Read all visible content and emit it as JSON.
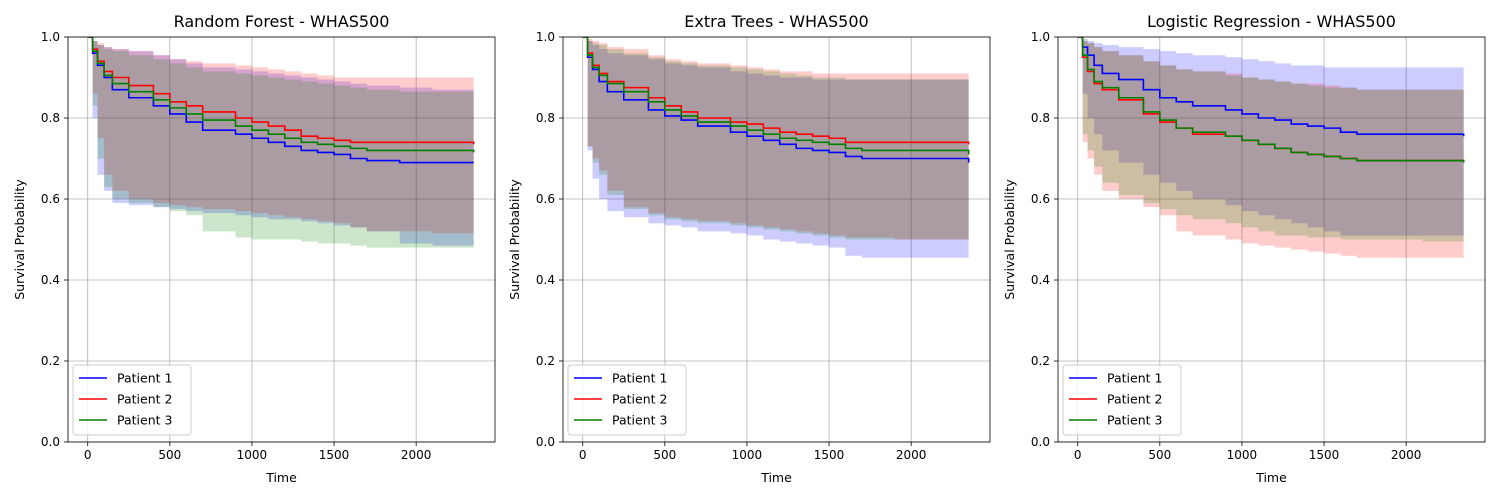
{
  "chart_data": [
    {
      "type": "line",
      "title": "Random Forest - WHAS500",
      "xlabel": "Time",
      "ylabel": "Survival Probability",
      "xlim": [
        -120,
        2480
      ],
      "ylim": [
        0.0,
        1.0
      ],
      "xticks": [
        0,
        500,
        1000,
        1500,
        2000
      ],
      "yticks": [
        0.0,
        0.2,
        0.4,
        0.6,
        0.8,
        1.0
      ],
      "grid": true,
      "legend": "lower-left",
      "x": [
        0,
        30,
        60,
        100,
        150,
        250,
        400,
        500,
        600,
        700,
        900,
        1000,
        1100,
        1200,
        1300,
        1400,
        1500,
        1600,
        1700,
        1900,
        2100,
        2350
      ],
      "series": [
        {
          "name": "Patient 1",
          "color": "#0000ff",
          "band_color": "#0000ff",
          "values": [
            1.0,
            0.96,
            0.93,
            0.9,
            0.87,
            0.85,
            0.83,
            0.81,
            0.79,
            0.77,
            0.76,
            0.75,
            0.74,
            0.73,
            0.72,
            0.715,
            0.71,
            0.7,
            0.695,
            0.69,
            0.69,
            0.69
          ],
          "lower": [
            1.0,
            0.8,
            0.66,
            0.62,
            0.59,
            0.585,
            0.58,
            0.575,
            0.57,
            0.565,
            0.56,
            0.555,
            0.55,
            0.55,
            0.545,
            0.54,
            0.535,
            0.53,
            0.52,
            0.49,
            0.485,
            0.48
          ],
          "upper": [
            1.0,
            0.99,
            0.98,
            0.975,
            0.97,
            0.965,
            0.955,
            0.945,
            0.935,
            0.925,
            0.92,
            0.915,
            0.91,
            0.905,
            0.9,
            0.895,
            0.89,
            0.885,
            0.88,
            0.875,
            0.87,
            0.865
          ]
        },
        {
          "name": "Patient 2",
          "color": "#ff0000",
          "band_color": "#ff0000",
          "values": [
            1.0,
            0.97,
            0.94,
            0.915,
            0.9,
            0.88,
            0.86,
            0.84,
            0.83,
            0.815,
            0.8,
            0.79,
            0.78,
            0.77,
            0.755,
            0.75,
            0.745,
            0.74,
            0.74,
            0.74,
            0.74,
            0.735
          ],
          "lower": [
            1.0,
            0.86,
            0.75,
            0.66,
            0.62,
            0.6,
            0.59,
            0.585,
            0.58,
            0.575,
            0.57,
            0.565,
            0.56,
            0.555,
            0.55,
            0.545,
            0.54,
            0.53,
            0.52,
            0.52,
            0.515,
            0.51
          ],
          "upper": [
            1.0,
            0.99,
            0.985,
            0.975,
            0.97,
            0.965,
            0.955,
            0.945,
            0.94,
            0.935,
            0.93,
            0.925,
            0.92,
            0.915,
            0.91,
            0.905,
            0.9,
            0.9,
            0.9,
            0.9,
            0.9,
            0.895
          ]
        },
        {
          "name": "Patient 3",
          "color": "#008000",
          "band_color": "#008000",
          "values": [
            1.0,
            0.965,
            0.935,
            0.905,
            0.885,
            0.865,
            0.845,
            0.825,
            0.81,
            0.795,
            0.78,
            0.77,
            0.76,
            0.75,
            0.74,
            0.735,
            0.73,
            0.725,
            0.72,
            0.72,
            0.72,
            0.715
          ],
          "lower": [
            1.0,
            0.83,
            0.7,
            0.63,
            0.6,
            0.59,
            0.58,
            0.57,
            0.56,
            0.52,
            0.505,
            0.5,
            0.5,
            0.5,
            0.495,
            0.49,
            0.49,
            0.485,
            0.48,
            0.48,
            0.48,
            0.475
          ],
          "upper": [
            1.0,
            0.99,
            0.98,
            0.97,
            0.965,
            0.955,
            0.945,
            0.935,
            0.925,
            0.915,
            0.91,
            0.905,
            0.9,
            0.895,
            0.89,
            0.885,
            0.88,
            0.875,
            0.87,
            0.865,
            0.865,
            0.86
          ]
        }
      ]
    },
    {
      "type": "line",
      "title": "Extra Trees - WHAS500",
      "xlabel": "Time",
      "ylabel": "Survival Probability",
      "xlim": [
        -120,
        2480
      ],
      "ylim": [
        0.0,
        1.0
      ],
      "xticks": [
        0,
        500,
        1000,
        1500,
        2000
      ],
      "yticks": [
        0.0,
        0.2,
        0.4,
        0.6,
        0.8,
        1.0
      ],
      "grid": true,
      "legend": "lower-left",
      "x": [
        0,
        30,
        60,
        100,
        150,
        250,
        400,
        500,
        600,
        700,
        900,
        1000,
        1100,
        1200,
        1300,
        1400,
        1500,
        1600,
        1700,
        1900,
        2100,
        2350
      ],
      "series": [
        {
          "name": "Patient 1",
          "color": "#0000ff",
          "band_color": "#0000ff",
          "values": [
            1.0,
            0.95,
            0.92,
            0.89,
            0.865,
            0.845,
            0.82,
            0.805,
            0.795,
            0.78,
            0.765,
            0.755,
            0.745,
            0.735,
            0.725,
            0.72,
            0.715,
            0.705,
            0.7,
            0.7,
            0.7,
            0.69
          ],
          "lower": [
            1.0,
            0.72,
            0.65,
            0.6,
            0.57,
            0.555,
            0.54,
            0.535,
            0.53,
            0.52,
            0.515,
            0.51,
            0.5,
            0.495,
            0.49,
            0.485,
            0.48,
            0.46,
            0.455,
            0.455,
            0.455,
            0.455
          ],
          "upper": [
            1.0,
            0.99,
            0.98,
            0.97,
            0.96,
            0.955,
            0.945,
            0.935,
            0.93,
            0.925,
            0.915,
            0.91,
            0.905,
            0.9,
            0.9,
            0.895,
            0.895,
            0.895,
            0.895,
            0.895,
            0.895,
            0.895
          ]
        },
        {
          "name": "Patient 2",
          "color": "#ff0000",
          "band_color": "#ff0000",
          "values": [
            1.0,
            0.96,
            0.93,
            0.91,
            0.89,
            0.875,
            0.85,
            0.83,
            0.815,
            0.8,
            0.79,
            0.785,
            0.775,
            0.765,
            0.76,
            0.755,
            0.75,
            0.74,
            0.74,
            0.74,
            0.74,
            0.735
          ],
          "lower": [
            1.0,
            0.73,
            0.7,
            0.67,
            0.62,
            0.58,
            0.565,
            0.555,
            0.55,
            0.545,
            0.54,
            0.535,
            0.53,
            0.525,
            0.52,
            0.515,
            0.51,
            0.505,
            0.505,
            0.5,
            0.5,
            0.5
          ],
          "upper": [
            1.0,
            0.995,
            0.99,
            0.985,
            0.975,
            0.97,
            0.955,
            0.945,
            0.94,
            0.935,
            0.93,
            0.925,
            0.92,
            0.915,
            0.915,
            0.91,
            0.91,
            0.91,
            0.91,
            0.91,
            0.91,
            0.905
          ]
        },
        {
          "name": "Patient 3",
          "color": "#008000",
          "band_color": "#008000",
          "values": [
            1.0,
            0.955,
            0.925,
            0.905,
            0.885,
            0.865,
            0.84,
            0.82,
            0.805,
            0.79,
            0.78,
            0.77,
            0.76,
            0.75,
            0.745,
            0.74,
            0.735,
            0.725,
            0.72,
            0.72,
            0.72,
            0.71
          ],
          "lower": [
            1.0,
            0.73,
            0.69,
            0.66,
            0.61,
            0.575,
            0.56,
            0.55,
            0.545,
            0.54,
            0.535,
            0.53,
            0.525,
            0.52,
            0.515,
            0.51,
            0.505,
            0.5,
            0.5,
            0.5,
            0.5,
            0.495
          ],
          "upper": [
            1.0,
            0.99,
            0.985,
            0.98,
            0.97,
            0.96,
            0.95,
            0.94,
            0.935,
            0.93,
            0.925,
            0.92,
            0.915,
            0.91,
            0.905,
            0.9,
            0.9,
            0.895,
            0.895,
            0.895,
            0.895,
            0.89
          ]
        }
      ]
    },
    {
      "type": "line",
      "title": "Logistic Regression - WHAS500",
      "xlabel": "Time",
      "ylabel": "Survival Probability",
      "xlim": [
        -120,
        2480
      ],
      "ylim": [
        0.0,
        1.0
      ],
      "xticks": [
        0,
        500,
        1000,
        1500,
        2000
      ],
      "yticks": [
        0.0,
        0.2,
        0.4,
        0.6,
        0.8,
        1.0
      ],
      "grid": true,
      "legend": "lower-left",
      "x": [
        0,
        30,
        60,
        100,
        150,
        250,
        400,
        500,
        600,
        700,
        900,
        1000,
        1100,
        1200,
        1300,
        1400,
        1500,
        1600,
        1700,
        1900,
        2100,
        2350
      ],
      "series": [
        {
          "name": "Patient 1",
          "color": "#0000ff",
          "band_color": "#0000ff",
          "values": [
            1.0,
            0.975,
            0.955,
            0.93,
            0.91,
            0.895,
            0.87,
            0.85,
            0.84,
            0.83,
            0.82,
            0.81,
            0.8,
            0.795,
            0.785,
            0.78,
            0.775,
            0.765,
            0.76,
            0.76,
            0.76,
            0.755
          ],
          "lower": [
            1.0,
            0.86,
            0.8,
            0.76,
            0.72,
            0.69,
            0.66,
            0.64,
            0.62,
            0.6,
            0.585,
            0.57,
            0.56,
            0.55,
            0.54,
            0.53,
            0.52,
            0.51,
            0.51,
            0.51,
            0.51,
            0.505
          ],
          "upper": [
            1.0,
            0.995,
            0.99,
            0.985,
            0.98,
            0.975,
            0.97,
            0.965,
            0.96,
            0.955,
            0.95,
            0.945,
            0.94,
            0.935,
            0.93,
            0.93,
            0.925,
            0.925,
            0.925,
            0.925,
            0.925,
            0.925
          ]
        },
        {
          "name": "Patient 2",
          "color": "#ff0000",
          "band_color": "#ff0000",
          "values": [
            1.0,
            0.95,
            0.915,
            0.885,
            0.87,
            0.845,
            0.81,
            0.79,
            0.775,
            0.76,
            0.755,
            0.745,
            0.735,
            0.725,
            0.715,
            0.71,
            0.705,
            0.7,
            0.695,
            0.695,
            0.695,
            0.69
          ],
          "lower": [
            1.0,
            0.74,
            0.7,
            0.66,
            0.62,
            0.6,
            0.58,
            0.56,
            0.52,
            0.51,
            0.5,
            0.49,
            0.485,
            0.48,
            0.475,
            0.47,
            0.465,
            0.46,
            0.455,
            0.455,
            0.455,
            0.45
          ],
          "upper": [
            1.0,
            0.99,
            0.985,
            0.975,
            0.965,
            0.955,
            0.94,
            0.93,
            0.92,
            0.915,
            0.91,
            0.9,
            0.895,
            0.89,
            0.885,
            0.885,
            0.88,
            0.875,
            0.87,
            0.87,
            0.87,
            0.87
          ]
        },
        {
          "name": "Patient 3",
          "color": "#008000",
          "band_color": "#008000",
          "values": [
            1.0,
            0.955,
            0.92,
            0.89,
            0.875,
            0.85,
            0.815,
            0.795,
            0.775,
            0.765,
            0.755,
            0.745,
            0.735,
            0.725,
            0.715,
            0.71,
            0.705,
            0.7,
            0.695,
            0.695,
            0.695,
            0.69
          ],
          "lower": [
            1.0,
            0.76,
            0.72,
            0.68,
            0.64,
            0.61,
            0.59,
            0.575,
            0.56,
            0.55,
            0.54,
            0.53,
            0.52,
            0.51,
            0.51,
            0.505,
            0.505,
            0.5,
            0.5,
            0.5,
            0.495,
            0.49
          ],
          "upper": [
            1.0,
            0.99,
            0.985,
            0.975,
            0.965,
            0.955,
            0.94,
            0.93,
            0.92,
            0.915,
            0.905,
            0.9,
            0.895,
            0.89,
            0.885,
            0.88,
            0.875,
            0.875,
            0.87,
            0.87,
            0.87,
            0.865
          ]
        }
      ]
    }
  ]
}
